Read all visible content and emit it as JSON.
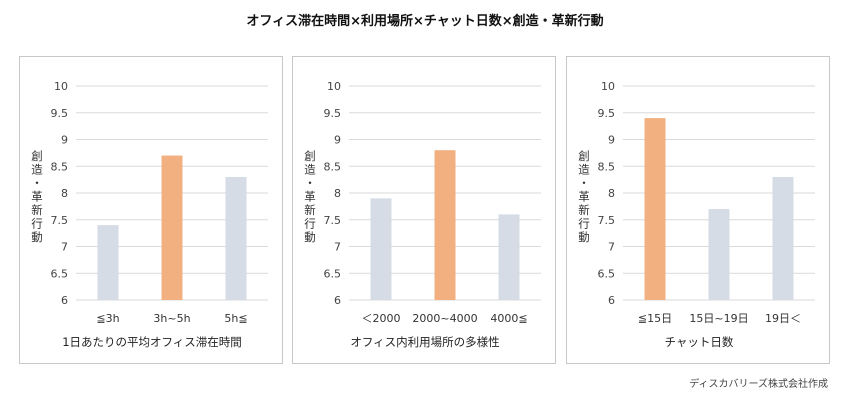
{
  "title": "オフィス滞在時間×利用場所×チャット日数×創造・革新行動",
  "credit": "ディスカバリーズ株式会社作成",
  "colors": {
    "highlight": "#f2b080",
    "base": "#d5dce6",
    "grid": "#dadada",
    "axis_text": "#444444"
  },
  "chart_data": [
    {
      "type": "bar",
      "xlabel": "1日あたりの平均オフィス滞在時間",
      "ylabel": "創造・革新行動",
      "categories": [
        "≦3h",
        "3h~5h",
        "5h≦"
      ],
      "values": [
        7.4,
        8.7,
        8.3
      ],
      "highlight_index": 1,
      "ylim": [
        6,
        10
      ],
      "yticks": [
        "6",
        "6.5",
        "7",
        "7.5",
        "8",
        "8.5",
        "9",
        "9.5",
        "10"
      ],
      "grid": true
    },
    {
      "type": "bar",
      "xlabel": "オフィス内利用場所の多様性",
      "ylabel": "創造・革新行動",
      "categories": [
        "＜2000",
        "2000~4000",
        "4000≦"
      ],
      "values": [
        7.9,
        8.8,
        7.6
      ],
      "highlight_index": 1,
      "ylim": [
        6,
        10
      ],
      "yticks": [
        "6",
        "6.5",
        "7",
        "7.5",
        "8",
        "8.5",
        "9",
        "9.5",
        "10"
      ],
      "grid": true
    },
    {
      "type": "bar",
      "xlabel": "チャット日数",
      "ylabel": "創造・革新行動",
      "categories": [
        "≦15日",
        "15日~19日",
        "19日＜"
      ],
      "values": [
        9.4,
        7.7,
        8.3
      ],
      "highlight_index": 0,
      "ylim": [
        6,
        10
      ],
      "yticks": [
        "6",
        "6.5",
        "7",
        "7.5",
        "8",
        "8.5",
        "9",
        "9.5",
        "10"
      ],
      "grid": true
    }
  ]
}
